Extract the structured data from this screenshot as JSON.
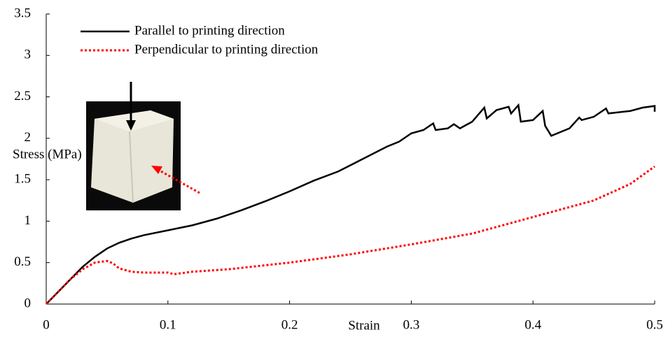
{
  "chart_data": {
    "type": "line",
    "x_label": "Strain",
    "y_label": "Stress (MPa)",
    "xlim": [
      0,
      0.5
    ],
    "xticks": [
      0,
      0.1,
      0.2,
      0.3,
      0.4,
      0.5
    ],
    "ylim": [
      0,
      3.5
    ],
    "yticks": [
      0,
      0.5,
      1,
      1.5,
      2,
      2.5,
      3,
      3.5
    ],
    "grid": false,
    "legend": "top-left",
    "series": [
      {
        "name": "Parallel to printing direction",
        "color": "#000000",
        "style": "solid",
        "x": [
          0,
          0.01,
          0.02,
          0.03,
          0.04,
          0.05,
          0.06,
          0.07,
          0.08,
          0.1,
          0.12,
          0.14,
          0.16,
          0.18,
          0.2,
          0.22,
          0.24,
          0.26,
          0.28,
          0.29,
          0.3,
          0.31,
          0.318,
          0.32,
          0.33,
          0.335,
          0.34,
          0.35,
          0.36,
          0.362,
          0.37,
          0.38,
          0.382,
          0.388,
          0.39,
          0.4,
          0.408,
          0.41,
          0.415,
          0.42,
          0.43,
          0.438,
          0.44,
          0.45,
          0.46,
          0.462,
          0.48,
          0.49,
          0.5,
          0.5
        ],
        "values": [
          0,
          0.15,
          0.3,
          0.45,
          0.57,
          0.67,
          0.74,
          0.79,
          0.83,
          0.89,
          0.95,
          1.03,
          1.13,
          1.24,
          1.36,
          1.49,
          1.6,
          1.75,
          1.9,
          1.96,
          2.06,
          2.1,
          2.18,
          2.1,
          2.12,
          2.17,
          2.12,
          2.2,
          2.37,
          2.24,
          2.34,
          2.38,
          2.3,
          2.4,
          2.2,
          2.22,
          2.33,
          2.15,
          2.03,
          2.06,
          2.12,
          2.25,
          2.22,
          2.26,
          2.36,
          2.3,
          2.33,
          2.37,
          2.39,
          2.32
        ]
      },
      {
        "name": "Perpendicular to printing direction",
        "color": "#ff0000",
        "style": "dotted",
        "x": [
          0,
          0.01,
          0.02,
          0.03,
          0.04,
          0.05,
          0.055,
          0.06,
          0.07,
          0.08,
          0.1,
          0.105,
          0.12,
          0.15,
          0.2,
          0.25,
          0.3,
          0.35,
          0.4,
          0.45,
          0.48,
          0.5
        ],
        "values": [
          0,
          0.15,
          0.3,
          0.42,
          0.5,
          0.52,
          0.49,
          0.43,
          0.39,
          0.38,
          0.38,
          0.36,
          0.39,
          0.42,
          0.5,
          0.6,
          0.72,
          0.85,
          1.05,
          1.25,
          1.45,
          1.66
        ]
      }
    ]
  }
}
